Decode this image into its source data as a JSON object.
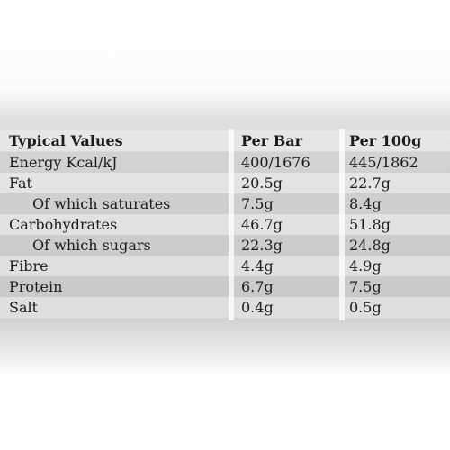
{
  "table": {
    "header": [
      "Typical Values",
      "Per Bar",
      "Per 100g"
    ],
    "rows": [
      [
        "Energy Kcal/kJ",
        "400/1676",
        "445/1862"
      ],
      [
        "Fat",
        "20.5g",
        "22.7g"
      ],
      [
        "Of which saturates",
        "7.5g",
        "8.4g"
      ],
      [
        "Carbohydrates",
        "46.7g",
        "51.8g"
      ],
      [
        "Of which sugars",
        "22.3g",
        "24.8g"
      ],
      [
        "Fibre",
        "4.4g",
        "4.9g"
      ],
      [
        "Protein",
        "6.7g",
        "7.5g"
      ],
      [
        "Salt",
        "0.4g",
        "0.5g"
      ]
    ]
  }
}
